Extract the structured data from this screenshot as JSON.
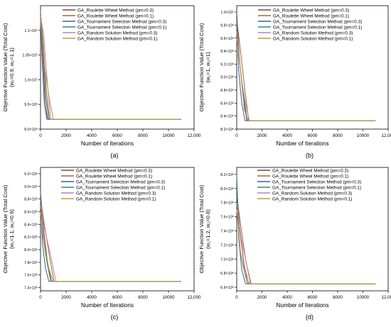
{
  "colors": {
    "roulette_03": "#8B3A4A",
    "roulette_01": "#A06A2A",
    "tournament_03": "#3B5FA0",
    "tournament_01": "#2E8B7A",
    "random_03": "#C47AC0",
    "random_01": "#B5A030"
  },
  "chart_data": [
    {
      "id": "a",
      "type": "line",
      "caption": "(a)",
      "xlabel": "Number of Iterations",
      "ylabel": "Objective Function Value (Total Cost)",
      "ylabel2": "(w₁=0.9, w₂=1.1)",
      "xlim": [
        0,
        12000
      ],
      "ylim": [
        9000000.0,
        11500000.0
      ],
      "xticks": [
        0,
        2000,
        4000,
        6000,
        8000,
        10000,
        12000
      ],
      "xtick_labels": [
        "0",
        "2000",
        "4000",
        "6000",
        "8000",
        "10000",
        "12,000"
      ],
      "yticks": [
        9000000.0,
        9500000.0,
        10000000.0,
        10500000.0,
        11000000.0
      ],
      "ytick_labels": [
        "9.0×10⁶",
        "9.5×10⁶",
        "1.0×10⁷",
        "1.05×10⁷",
        "1.1×10⁷"
      ],
      "series": [
        {
          "name": "GA_Roulette Wheel Method (pm=0.3)",
          "color_key": "roulette_03",
          "x": [
            0,
            150,
            350,
            550,
            11000
          ],
          "y": [
            11400000.0,
            10600000.0,
            9600000.0,
            9200000.0,
            9200000.0
          ]
        },
        {
          "name": "GA_Roulette Wheel Method (pm=0.1)",
          "color_key": "roulette_01",
          "x": [
            0,
            200,
            450,
            700,
            11000
          ],
          "y": [
            11350000.0,
            10800000.0,
            9800000.0,
            9200000.0,
            9200000.0
          ]
        },
        {
          "name": "GA_Tournament Selection Method (pm=0.3)",
          "color_key": "tournament_03",
          "x": [
            0,
            120,
            300,
            500,
            11000
          ],
          "y": [
            11300000.0,
            10400000.0,
            9500000.0,
            9200000.0,
            9200000.0
          ]
        },
        {
          "name": "GA_Tournament Selection Method (pm=0.1)",
          "color_key": "tournament_01",
          "x": [
            0,
            180,
            400,
            650,
            11000
          ],
          "y": [
            11250000.0,
            10700000.0,
            9700000.0,
            9200000.0,
            9200000.0
          ]
        },
        {
          "name": "GA_Random Solution Method (pm=0.3)",
          "color_key": "random_03",
          "x": [
            0,
            250,
            550,
            800,
            11000
          ],
          "y": [
            11300000.0,
            10900000.0,
            9900000.0,
            9200000.0,
            9200000.0
          ]
        },
        {
          "name": "GA_Random Solution Method (pm=0.1)",
          "color_key": "random_01",
          "x": [
            0,
            300,
            700,
            1000,
            11000
          ],
          "y": [
            11200000.0,
            10300000.0,
            9600000.0,
            9200000.0,
            9200000.0
          ]
        }
      ]
    },
    {
      "id": "b",
      "type": "line",
      "caption": "(b)",
      "xlabel": "Number of Iterations",
      "ylabel": "Objective Function Value (Total Cost)",
      "ylabel2": "(w₁=1, w₂=1)",
      "xlim": [
        0,
        12000
      ],
      "ylim": [
        8200000.0,
        10100000.0
      ],
      "xticks": [
        0,
        2000,
        4000,
        6000,
        8000,
        10000,
        12000
      ],
      "xtick_labels": [
        "0",
        "2000",
        "4000",
        "6000",
        "8000",
        "10000",
        "12,000"
      ],
      "yticks": [
        8200000.0,
        8400000.0,
        8600000.0,
        8800000.0,
        9000000.0,
        9200000.0,
        9400000.0,
        9600000.0,
        9800000.0,
        10000000.0
      ],
      "ytick_labels": [
        "8.2×10⁶",
        "8.4×10⁶",
        "8.6×10⁶",
        "8.8×10⁶",
        "9.0×10⁶",
        "9.2×10⁶",
        "9.4×10⁶",
        "9.6×10⁶",
        "9.8×10⁶",
        "1.0×10⁷"
      ],
      "series": [
        {
          "name": "GA_Roulette Wheel Method (pm=0.3)",
          "color_key": "roulette_03",
          "x": [
            0,
            200,
            500,
            800,
            11000
          ],
          "y": [
            10000000.0,
            9300000.0,
            8700000.0,
            8330000.0,
            8330000.0
          ]
        },
        {
          "name": "GA_Roulette Wheel Method (pm=0.1)",
          "color_key": "roulette_01",
          "x": [
            0,
            300,
            650,
            950,
            11000
          ],
          "y": [
            9900000.0,
            9400000.0,
            8800000.0,
            8330000.0,
            8330000.0
          ]
        },
        {
          "name": "GA_Tournament Selection Method (pm=0.3)",
          "color_key": "tournament_03",
          "x": [
            0,
            150,
            400,
            650,
            11000
          ],
          "y": [
            9900000.0,
            9100000.0,
            8600000.0,
            8330000.0,
            8330000.0
          ]
        },
        {
          "name": "GA_Tournament Selection Method (pm=0.1)",
          "color_key": "tournament_01",
          "x": [
            0,
            250,
            550,
            850,
            11000
          ],
          "y": [
            9800000.0,
            9200000.0,
            8700000.0,
            8330000.0,
            8330000.0
          ]
        },
        {
          "name": "GA_Random Solution Method (pm=0.3)",
          "color_key": "random_03",
          "x": [
            0,
            350,
            700,
            1000,
            11000
          ],
          "y": [
            9700000.0,
            9000000.0,
            8600000.0,
            8330000.0,
            8330000.0
          ]
        },
        {
          "name": "GA_Random Solution Method (pm=0.1)",
          "color_key": "random_01",
          "x": [
            0,
            300,
            600,
            900,
            11000
          ],
          "y": [
            9600000.0,
            9100000.0,
            8500000.0,
            8330000.0,
            8330000.0
          ]
        }
      ]
    },
    {
      "id": "c",
      "type": "line",
      "caption": "(c)",
      "xlabel": "Number of Iterations",
      "ylabel": "Objective Function Value (Total Cost)",
      "ylabel2": "(w₁=1.1, w₂=0.9)",
      "xlim": [
        0,
        12000
      ],
      "ylim": [
        7350000.0,
        9300000.0
      ],
      "xticks": [
        0,
        2000,
        4000,
        6000,
        8000,
        10000,
        12000
      ],
      "xtick_labels": [
        "0",
        "2000",
        "4000",
        "6000",
        "8000",
        "10000",
        "12,000"
      ],
      "yticks": [
        7400000.0,
        7600000.0,
        7800000.0,
        8000000.0,
        8200000.0,
        8400000.0,
        8600000.0,
        8800000.0,
        9000000.0,
        9200000.0
      ],
      "ytick_labels": [
        "7.4×10⁶",
        "7.6×10⁶",
        "7.8×10⁶",
        "8.0×10⁶",
        "8.2×10⁶",
        "8.4×10⁶",
        "8.6×10⁶",
        "8.8×10⁶",
        "9.0×10⁶",
        "9.2×10⁶"
      ],
      "series": [
        {
          "name": "GA_Roulette Wheel Method (pm=0.3)",
          "color_key": "roulette_03",
          "x": [
            0,
            250,
            550,
            850,
            11000
          ],
          "y": [
            8900000.0,
            8300000.0,
            7800000.0,
            7500000.0,
            7500000.0
          ]
        },
        {
          "name": "GA_Roulette Wheel Method (pm=0.1)",
          "color_key": "roulette_01",
          "x": [
            0,
            300,
            700,
            1050,
            11000
          ],
          "y": [
            8800000.0,
            8400000.0,
            7900000.0,
            7500000.0,
            7500000.0
          ]
        },
        {
          "name": "GA_Tournament Selection Method (pm=0.3)",
          "color_key": "tournament_03",
          "x": [
            0,
            150,
            400,
            650,
            11000
          ],
          "y": [
            8900000.0,
            8100000.0,
            7700000.0,
            7500000.0,
            7500000.0
          ]
        },
        {
          "name": "GA_Tournament Selection Method (pm=0.1)",
          "color_key": "tournament_01",
          "x": [
            0,
            200,
            500,
            800,
            11000
          ],
          "y": [
            8800000.0,
            8200000.0,
            7800000.0,
            7500000.0,
            7500000.0
          ]
        },
        {
          "name": "GA_Random Solution Method (pm=0.3)",
          "color_key": "random_03",
          "x": [
            0,
            350,
            800,
            1200,
            11000
          ],
          "y": [
            8700000.0,
            8300000.0,
            7900000.0,
            7500000.0,
            7500000.0
          ]
        },
        {
          "name": "GA_Random Solution Method (pm=0.1)",
          "color_key": "random_01",
          "x": [
            0,
            300,
            650,
            1000,
            11000
          ],
          "y": [
            8600000.0,
            8100000.0,
            7700000.0,
            7500000.0,
            7500000.0
          ]
        }
      ]
    },
    {
      "id": "d",
      "type": "line",
      "caption": "(d)",
      "xlabel": "Number of Iterations",
      "ylabel": "Objective Function Value (Total Cost)",
      "ylabel2": "(w₁=1.2, w₂=0.8)",
      "xlim": [
        0,
        12000
      ],
      "ylim": [
        6550000.0,
        8300000.0
      ],
      "xticks": [
        0,
        2000,
        4000,
        6000,
        8000,
        10000,
        12000
      ],
      "xtick_labels": [
        "0",
        "2000",
        "4000",
        "6000",
        "8000",
        "10000",
        "12,000"
      ],
      "yticks": [
        6600000.0,
        6800000.0,
        7000000.0,
        7200000.0,
        7400000.0,
        7600000.0,
        7800000.0,
        8000000.0,
        8200000.0
      ],
      "ytick_labels": [
        "6.6×10⁶",
        "6.8×10⁶",
        "7.0×10⁶",
        "7.2×10⁶",
        "7.4×10⁶",
        "7.6×10⁶",
        "7.8×10⁶",
        "8.0×10⁶",
        "8.2×10⁶"
      ],
      "series": [
        {
          "name": "GA_Roulette Wheel Method (pm=0.3)",
          "color_key": "roulette_03",
          "x": [
            0,
            250,
            600,
            950,
            11000
          ],
          "y": [
            8000000.0,
            7400000.0,
            6900000.0,
            6650000.0,
            6650000.0
          ]
        },
        {
          "name": "GA_Roulette Wheel Method (pm=0.1)",
          "color_key": "roulette_01",
          "x": [
            0,
            300,
            700,
            1100,
            11000
          ],
          "y": [
            7900000.0,
            7500000.0,
            7000000.0,
            6650000.0,
            6650000.0
          ]
        },
        {
          "name": "GA_Tournament Selection Method (pm=0.3)",
          "color_key": "tournament_03",
          "x": [
            0,
            150,
            400,
            700,
            11000
          ],
          "y": [
            8100000.0,
            7300000.0,
            6850000.0,
            6650000.0,
            6650000.0
          ]
        },
        {
          "name": "GA_Tournament Selection Method (pm=0.1)",
          "color_key": "tournament_01",
          "x": [
            0,
            200,
            500,
            850,
            11000
          ],
          "y": [
            8200000.0,
            7200000.0,
            6900000.0,
            6650000.0,
            6650000.0
          ]
        },
        {
          "name": "GA_Random Solution Method (pm=0.3)",
          "color_key": "random_03",
          "x": [
            0,
            350,
            750,
            1150,
            11000
          ],
          "y": [
            7800000.0,
            7300000.0,
            6950000.0,
            6650000.0,
            6650000.0
          ]
        },
        {
          "name": "GA_Random Solution Method (pm=0.1)",
          "color_key": "random_01",
          "x": [
            0,
            300,
            650,
            1000,
            11000
          ],
          "y": [
            7700000.0,
            7100000.0,
            6800000.0,
            6650000.0,
            6650000.0
          ]
        }
      ]
    }
  ]
}
